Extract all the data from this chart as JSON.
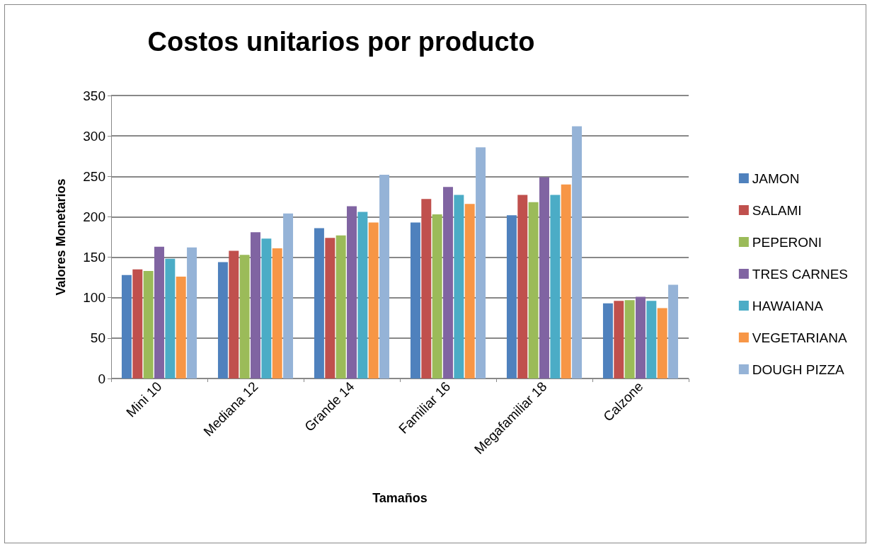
{
  "chart_data": {
    "type": "bar",
    "title": "Costos unitarios por producto",
    "xlabel": "Tamaños",
    "ylabel": "Valores Monetarios",
    "categories": [
      "Mini 10",
      "Mediana 12",
      "Grande 14",
      "Familiar 16",
      "Megafamiliar 18",
      "Calzone"
    ],
    "series": [
      {
        "name": "JAMON",
        "color": "#4f81bd",
        "values": [
          128,
          144,
          186,
          193,
          202,
          93
        ]
      },
      {
        "name": "SALAMI",
        "color": "#c0504d",
        "values": [
          135,
          158,
          174,
          222,
          227,
          96
        ]
      },
      {
        "name": "PEPERONI",
        "color": "#9bbb59",
        "values": [
          133,
          153,
          177,
          203,
          218,
          97
        ]
      },
      {
        "name": "TRES CARNES",
        "color": "#8064a2",
        "values": [
          163,
          181,
          213,
          237,
          249,
          101
        ]
      },
      {
        "name": "HAWAIANA",
        "color": "#4bacc6",
        "values": [
          148,
          173,
          206,
          227,
          227,
          96
        ]
      },
      {
        "name": "VEGETARIANA",
        "color": "#f79646",
        "values": [
          126,
          161,
          193,
          216,
          240,
          87
        ]
      },
      {
        "name": "DOUGH PIZZA",
        "color": "#95b3d7",
        "values": [
          162,
          204,
          252,
          286,
          312,
          116
        ]
      }
    ],
    "ylim": [
      0,
      350
    ],
    "yticks": [
      0,
      50,
      100,
      150,
      200,
      250,
      300,
      350
    ],
    "grid": "y",
    "legend": "right"
  }
}
